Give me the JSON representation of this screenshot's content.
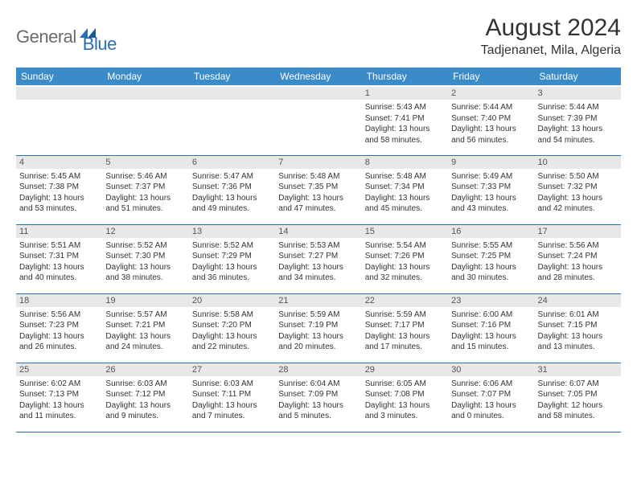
{
  "brand": {
    "word1": "General",
    "word2": "Blue"
  },
  "title": "August 2024",
  "location": "Tadjenanet, Mila, Algeria",
  "colors": {
    "header_bg": "#3b8bc8",
    "header_text": "#ffffff",
    "cell_border": "#2a6fb0",
    "daynum_bg": "#e8e8e8",
    "body_text": "#333333",
    "logo_gray": "#6b6b6b",
    "logo_blue": "#2a6fb0"
  },
  "day_headers": [
    "Sunday",
    "Monday",
    "Tuesday",
    "Wednesday",
    "Thursday",
    "Friday",
    "Saturday"
  ],
  "weeks": [
    [
      null,
      null,
      null,
      null,
      {
        "n": "1",
        "sunrise": "5:43 AM",
        "sunset": "7:41 PM",
        "dlh": "13",
        "dlm": "58"
      },
      {
        "n": "2",
        "sunrise": "5:44 AM",
        "sunset": "7:40 PM",
        "dlh": "13",
        "dlm": "56"
      },
      {
        "n": "3",
        "sunrise": "5:44 AM",
        "sunset": "7:39 PM",
        "dlh": "13",
        "dlm": "54"
      }
    ],
    [
      {
        "n": "4",
        "sunrise": "5:45 AM",
        "sunset": "7:38 PM",
        "dlh": "13",
        "dlm": "53"
      },
      {
        "n": "5",
        "sunrise": "5:46 AM",
        "sunset": "7:37 PM",
        "dlh": "13",
        "dlm": "51"
      },
      {
        "n": "6",
        "sunrise": "5:47 AM",
        "sunset": "7:36 PM",
        "dlh": "13",
        "dlm": "49"
      },
      {
        "n": "7",
        "sunrise": "5:48 AM",
        "sunset": "7:35 PM",
        "dlh": "13",
        "dlm": "47"
      },
      {
        "n": "8",
        "sunrise": "5:48 AM",
        "sunset": "7:34 PM",
        "dlh": "13",
        "dlm": "45"
      },
      {
        "n": "9",
        "sunrise": "5:49 AM",
        "sunset": "7:33 PM",
        "dlh": "13",
        "dlm": "43"
      },
      {
        "n": "10",
        "sunrise": "5:50 AM",
        "sunset": "7:32 PM",
        "dlh": "13",
        "dlm": "42"
      }
    ],
    [
      {
        "n": "11",
        "sunrise": "5:51 AM",
        "sunset": "7:31 PM",
        "dlh": "13",
        "dlm": "40"
      },
      {
        "n": "12",
        "sunrise": "5:52 AM",
        "sunset": "7:30 PM",
        "dlh": "13",
        "dlm": "38"
      },
      {
        "n": "13",
        "sunrise": "5:52 AM",
        "sunset": "7:29 PM",
        "dlh": "13",
        "dlm": "36"
      },
      {
        "n": "14",
        "sunrise": "5:53 AM",
        "sunset": "7:27 PM",
        "dlh": "13",
        "dlm": "34"
      },
      {
        "n": "15",
        "sunrise": "5:54 AM",
        "sunset": "7:26 PM",
        "dlh": "13",
        "dlm": "32"
      },
      {
        "n": "16",
        "sunrise": "5:55 AM",
        "sunset": "7:25 PM",
        "dlh": "13",
        "dlm": "30"
      },
      {
        "n": "17",
        "sunrise": "5:56 AM",
        "sunset": "7:24 PM",
        "dlh": "13",
        "dlm": "28"
      }
    ],
    [
      {
        "n": "18",
        "sunrise": "5:56 AM",
        "sunset": "7:23 PM",
        "dlh": "13",
        "dlm": "26"
      },
      {
        "n": "19",
        "sunrise": "5:57 AM",
        "sunset": "7:21 PM",
        "dlh": "13",
        "dlm": "24"
      },
      {
        "n": "20",
        "sunrise": "5:58 AM",
        "sunset": "7:20 PM",
        "dlh": "13",
        "dlm": "22"
      },
      {
        "n": "21",
        "sunrise": "5:59 AM",
        "sunset": "7:19 PM",
        "dlh": "13",
        "dlm": "20"
      },
      {
        "n": "22",
        "sunrise": "5:59 AM",
        "sunset": "7:17 PM",
        "dlh": "13",
        "dlm": "17"
      },
      {
        "n": "23",
        "sunrise": "6:00 AM",
        "sunset": "7:16 PM",
        "dlh": "13",
        "dlm": "15"
      },
      {
        "n": "24",
        "sunrise": "6:01 AM",
        "sunset": "7:15 PM",
        "dlh": "13",
        "dlm": "13"
      }
    ],
    [
      {
        "n": "25",
        "sunrise": "6:02 AM",
        "sunset": "7:13 PM",
        "dlh": "13",
        "dlm": "11"
      },
      {
        "n": "26",
        "sunrise": "6:03 AM",
        "sunset": "7:12 PM",
        "dlh": "13",
        "dlm": "9"
      },
      {
        "n": "27",
        "sunrise": "6:03 AM",
        "sunset": "7:11 PM",
        "dlh": "13",
        "dlm": "7"
      },
      {
        "n": "28",
        "sunrise": "6:04 AM",
        "sunset": "7:09 PM",
        "dlh": "13",
        "dlm": "5"
      },
      {
        "n": "29",
        "sunrise": "6:05 AM",
        "sunset": "7:08 PM",
        "dlh": "13",
        "dlm": "3"
      },
      {
        "n": "30",
        "sunrise": "6:06 AM",
        "sunset": "7:07 PM",
        "dlh": "13",
        "dlm": "0"
      },
      {
        "n": "31",
        "sunrise": "6:07 AM",
        "sunset": "7:05 PM",
        "dlh": "12",
        "dlm": "58"
      }
    ]
  ],
  "labels": {
    "sunrise_prefix": "Sunrise: ",
    "sunset_prefix": "Sunset: ",
    "daylight_prefix": "Daylight: ",
    "hours_word": " hours",
    "and_word": "and ",
    "minutes_word": " minutes."
  }
}
